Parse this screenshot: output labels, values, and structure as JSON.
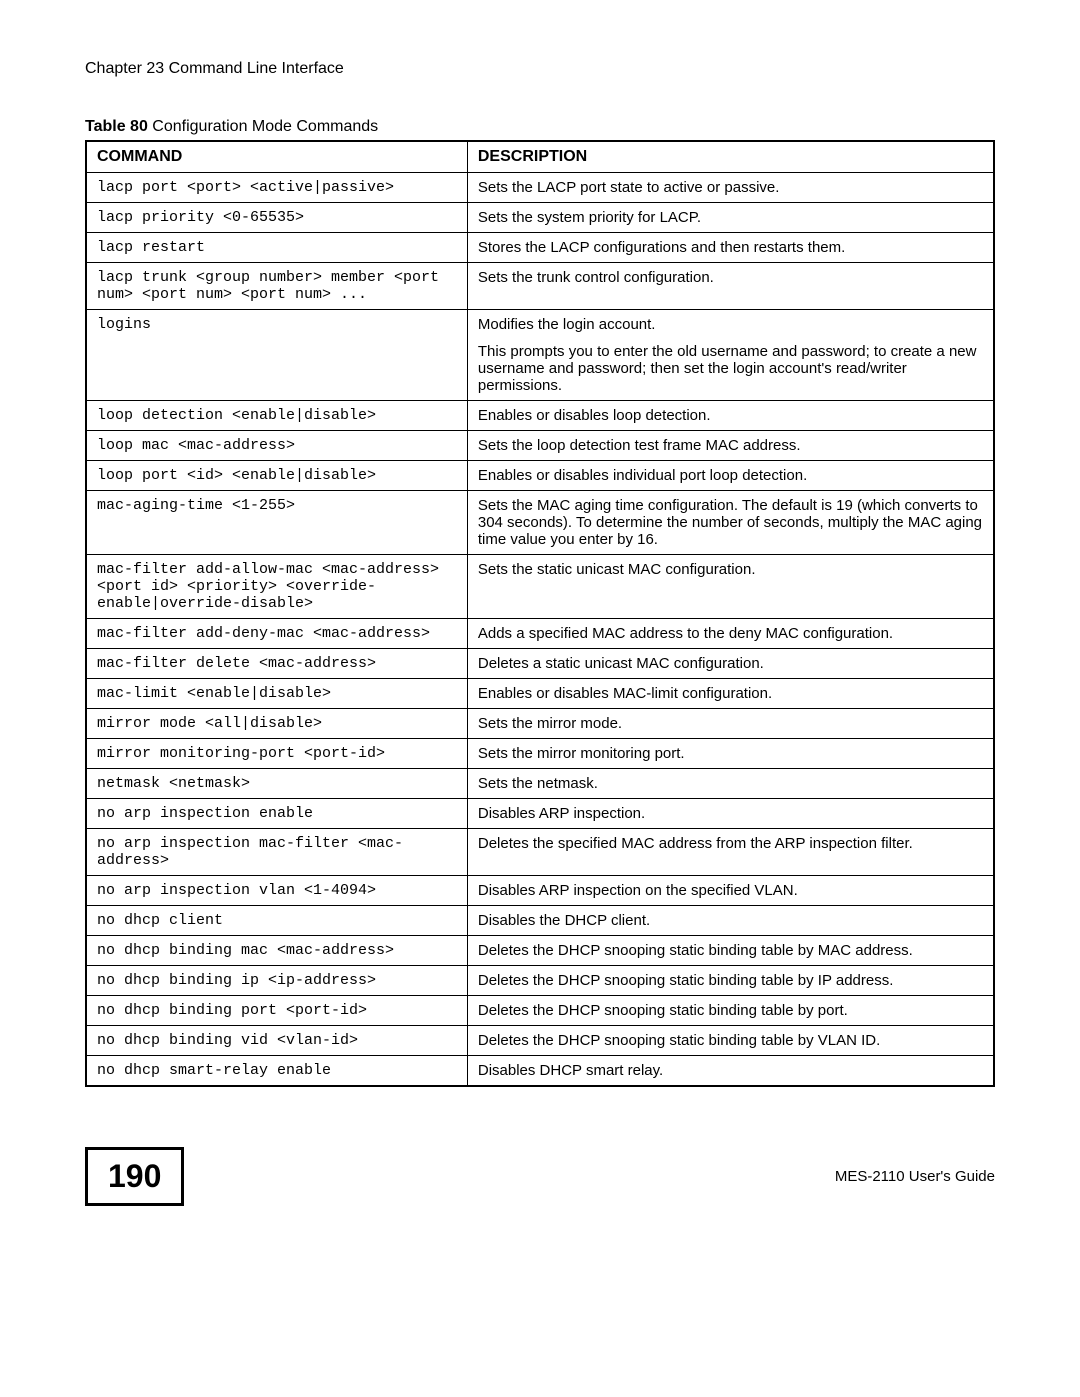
{
  "chapter_header": "Chapter 23 Command Line Interface",
  "table_caption_prefix": "Table 80",
  "table_caption_title": "   Configuration Mode Commands",
  "table_headers": {
    "command": "Command",
    "description": "Description"
  },
  "rows": [
    {
      "cmd": "lacp port <port> <active|passive>",
      "desc": [
        "Sets the LACP port state to active or passive."
      ]
    },
    {
      "cmd": "lacp priority <0-65535>",
      "desc": [
        "Sets the system priority for LACP."
      ]
    },
    {
      "cmd": "lacp restart",
      "desc": [
        "Stores the LACP configurations and then restarts them."
      ]
    },
    {
      "cmd": "lacp trunk <group number> member <port num> <port num> <port num> ...",
      "desc": [
        "Sets the trunk control configuration."
      ]
    },
    {
      "cmd": "logins",
      "desc": [
        "Modifies the login account.",
        "This prompts you to enter the old username and password; to create a new username and password; then set the login account's read/writer permissions."
      ]
    },
    {
      "cmd": "loop detection <enable|disable>",
      "desc": [
        "Enables or disables loop detection."
      ]
    },
    {
      "cmd": "loop mac <mac-address>",
      "desc": [
        "Sets the loop detection test frame MAC address."
      ]
    },
    {
      "cmd": "loop port <id> <enable|disable>",
      "desc": [
        "Enables or disables individual port loop detection."
      ]
    },
    {
      "cmd": "mac-aging-time <1-255>",
      "desc": [
        "Sets the MAC aging time configuration. The default is 19 (which converts to 304 seconds). To determine the number of seconds, multiply the MAC aging time value you enter by 16."
      ]
    },
    {
      "cmd": "mac-filter add-allow-mac <mac-address> <port id> <priority> <override-enable|override-disable>",
      "desc": [
        "Sets the static unicast MAC configuration."
      ]
    },
    {
      "cmd": "mac-filter add-deny-mac <mac-address>",
      "desc": [
        "Adds a specified MAC address to the deny MAC configuration."
      ]
    },
    {
      "cmd": "mac-filter delete <mac-address>",
      "desc": [
        "Deletes a static unicast MAC configuration."
      ]
    },
    {
      "cmd": "mac-limit <enable|disable>",
      "desc": [
        "Enables or disables MAC-limit configuration."
      ]
    },
    {
      "cmd": "mirror mode <all|disable>",
      "desc": [
        "Sets the mirror mode."
      ]
    },
    {
      "cmd": "mirror monitoring-port <port-id>",
      "desc": [
        "Sets the mirror monitoring port."
      ]
    },
    {
      "cmd": "netmask <netmask>",
      "desc": [
        "Sets the netmask."
      ]
    },
    {
      "cmd": "no arp inspection enable",
      "desc": [
        "Disables ARP inspection."
      ]
    },
    {
      "cmd": "no arp inspection mac-filter <mac-address>",
      "desc": [
        "Deletes the specified MAC address from the ARP inspection filter."
      ]
    },
    {
      "cmd": "no arp inspection vlan <1-4094>",
      "desc": [
        "Disables ARP inspection on the specified VLAN."
      ]
    },
    {
      "cmd": "no dhcp client",
      "desc": [
        "Disables the DHCP client."
      ]
    },
    {
      "cmd": "no dhcp binding mac <mac-address>",
      "desc": [
        "Deletes the DHCP snooping static binding table by MAC address."
      ]
    },
    {
      "cmd": "no dhcp binding ip <ip-address>",
      "desc": [
        "Deletes the DHCP snooping static binding table by IP address."
      ]
    },
    {
      "cmd": "no dhcp binding port <port-id>",
      "desc": [
        "Deletes the DHCP snooping static binding table by port."
      ]
    },
    {
      "cmd": "no dhcp binding vid <vlan-id>",
      "desc": [
        "Deletes the DHCP snooping static binding table by VLAN ID."
      ]
    },
    {
      "cmd": "no dhcp smart-relay enable",
      "desc": [
        "Disables DHCP smart relay."
      ]
    }
  ],
  "page_number": "190",
  "footer_right": "MES-2110 User's Guide"
}
